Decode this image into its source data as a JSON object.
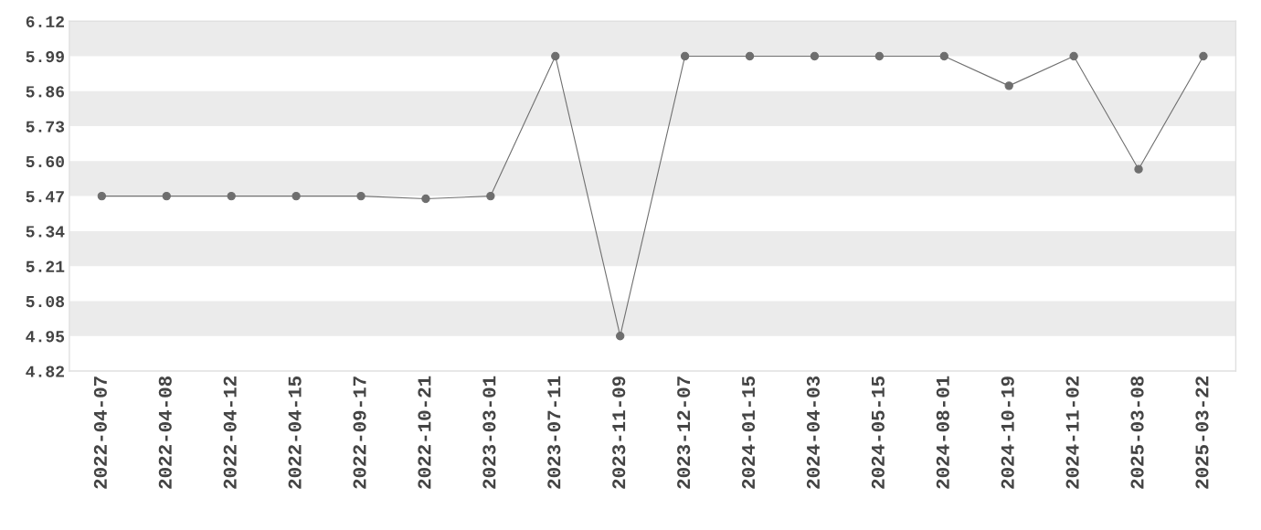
{
  "chart_data": {
    "type": "line",
    "categories": [
      "2022-04-07",
      "2022-04-08",
      "2022-04-12",
      "2022-04-15",
      "2022-09-17",
      "2022-10-21",
      "2023-03-01",
      "2023-07-11",
      "2023-11-09",
      "2023-12-07",
      "2024-01-15",
      "2024-04-03",
      "2024-05-15",
      "2024-08-01",
      "2024-10-19",
      "2024-11-02",
      "2025-03-08",
      "2025-03-22"
    ],
    "series": [
      {
        "color": "#707070",
        "values": [
          5.47,
          5.47,
          5.47,
          5.47,
          5.47,
          5.46,
          5.47,
          5.99,
          4.95,
          5.99,
          5.99,
          5.99,
          5.99,
          5.99,
          5.88,
          5.99,
          5.57,
          5.99
        ]
      }
    ],
    "ylim": [
      4.82,
      6.12
    ],
    "yticks": [
      4.82,
      4.95,
      5.08,
      5.21,
      5.34,
      5.47,
      {
        "value": 5.6,
        "label": "5.60"
      },
      5.73,
      5.86,
      5.99,
      6.12
    ],
    "bands": [
      {
        "axis": "y",
        "from": 4.95,
        "to": 5.08,
        "color": "#ebebeb"
      },
      {
        "axis": "y",
        "from": 5.21,
        "to": 5.34,
        "color": "#ebebeb"
      },
      {
        "axis": "y",
        "from": 5.47,
        "to": 5.6,
        "color": "#ebebeb"
      },
      {
        "axis": "y",
        "from": 5.73,
        "to": 5.86,
        "color": "#ebebeb"
      },
      {
        "axis": "y",
        "from": 5.99,
        "to": 6.12,
        "color": "#ebebeb"
      }
    ],
    "marker": "circle",
    "line_style": "solid"
  }
}
